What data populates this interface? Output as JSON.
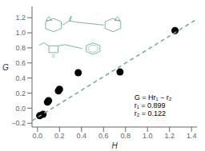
{
  "chart_data": {
    "type": "scatter",
    "xlabel": "H",
    "ylabel": "G",
    "xlim": [
      -0.05,
      1.45
    ],
    "ylim": [
      -0.25,
      1.35
    ],
    "xticks": [
      {
        "value": 0.0,
        "label": "0.0"
      },
      0.2,
      0.4,
      0.6,
      0.8,
      {
        "value": 1.0,
        "label": "1.0"
      },
      1.2,
      1.4
    ],
    "yticks": [
      {
        "value": -0.2,
        "label": "−0.2"
      },
      {
        "value": 0.0,
        "label": "0.0"
      },
      0.2,
      0.4,
      0.6,
      0.8,
      {
        "value": 1.0,
        "label": "1.0"
      },
      1.2
    ],
    "series": [
      {
        "type": "scatter",
        "color": "black",
        "x": [
          0.02,
          0.05,
          0.09,
          0.1,
          0.19,
          0.2,
          0.37,
          0.75,
          1.25
        ],
        "values": [
          -0.1,
          -0.08,
          0.08,
          0.1,
          0.23,
          0.25,
          0.47,
          0.48,
          1.03
        ]
      },
      {
        "type": "line",
        "color": "#6aaba0",
        "line_style": "dashed",
        "x": [
          -0.05,
          1.45
        ],
        "values": [
          -0.167,
          1.182
        ]
      }
    ],
    "annotations": [
      "G = Hr₁ − r₂\nr₁ = 0.899\nr₂ = 0.122",
      "O"
    ],
    "grid": false
  }
}
